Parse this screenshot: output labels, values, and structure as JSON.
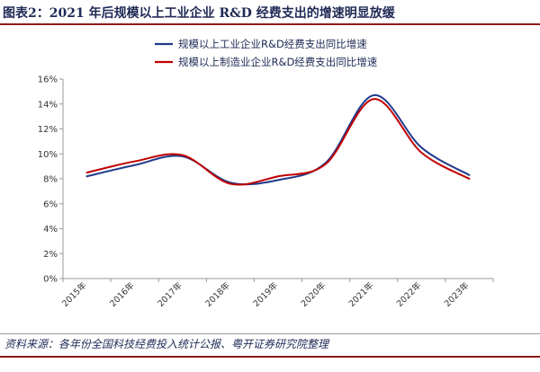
{
  "header": {
    "title": "图表2：2021 年后规模以上工业企业 R&D 经费支出的增速明显放缓"
  },
  "footer": {
    "source": "资料来源：各年份全国科技经费投入统计公报、粤开证券研究院整理"
  },
  "colors": {
    "title": "#1f2a55",
    "rule": "#8b1a1a",
    "series_1": "#1f3a8a",
    "series_2": "#c00000",
    "axis": "#999999"
  },
  "chart_data": {
    "type": "line",
    "title": "",
    "xlabel": "",
    "ylabel": "",
    "categories": [
      "2015年",
      "2016年",
      "2017年",
      "2018年",
      "2019年",
      "2020年",
      "2021年",
      "2022年",
      "2023年"
    ],
    "series": [
      {
        "name": "规模以上工业企业R&D经费支出同比增速",
        "values": [
          8.2,
          9.1,
          9.8,
          7.7,
          7.9,
          9.3,
          14.7,
          10.5,
          8.3
        ]
      },
      {
        "name": "规模以上制造业企业R&D经费支出同比增速",
        "values": [
          8.5,
          9.4,
          9.9,
          7.6,
          8.2,
          9.2,
          14.4,
          10.1,
          8.0
        ]
      }
    ],
    "yticks": [
      "0%",
      "2%",
      "4%",
      "6%",
      "8%",
      "10%",
      "12%",
      "14%",
      "16%"
    ],
    "ylim": [
      0,
      16
    ],
    "y_unit": "%",
    "grid": false,
    "smooth": true,
    "legend_position": "top-center"
  }
}
